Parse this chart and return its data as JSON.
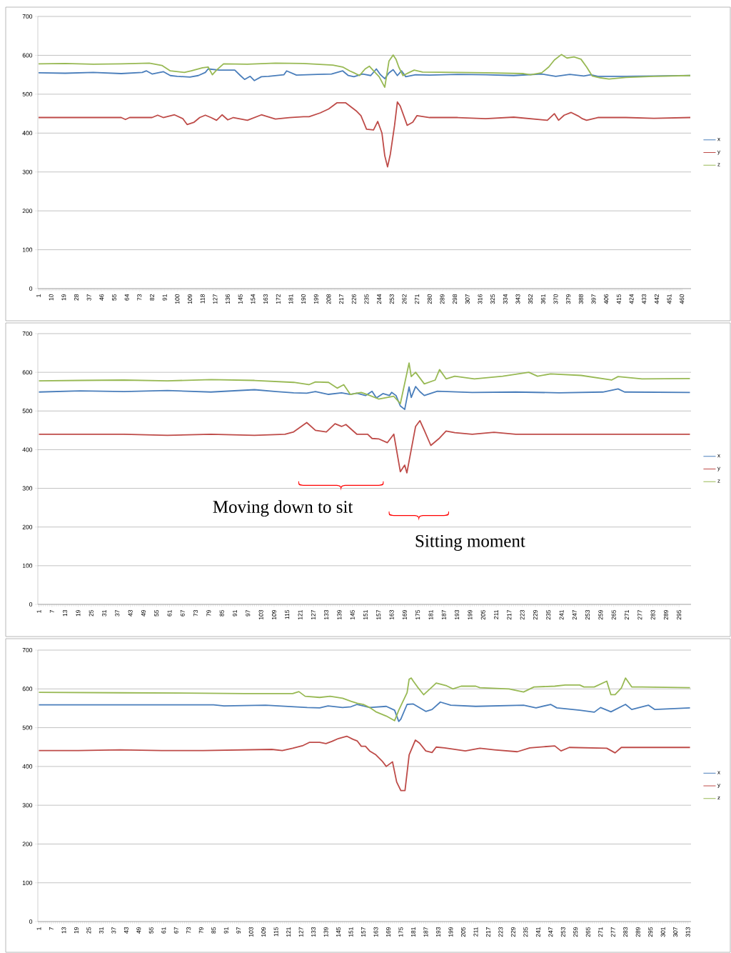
{
  "chart_data": [
    {
      "type": "line",
      "xlim": [
        0.5,
        466.5
      ],
      "ylim": [
        0,
        700
      ],
      "yticks": [
        0,
        100,
        200,
        300,
        400,
        500,
        600,
        700
      ],
      "xticks": [
        1,
        10,
        19,
        28,
        37,
        46,
        55,
        64,
        73,
        82,
        91,
        100,
        109,
        118,
        127,
        136,
        145,
        154,
        163,
        172,
        181,
        190,
        199,
        208,
        217,
        226,
        235,
        244,
        253,
        262,
        271,
        280,
        289,
        298,
        307,
        316,
        325,
        334,
        343,
        352,
        361,
        370,
        379,
        388,
        397,
        406,
        415,
        424,
        433,
        442,
        451,
        460
      ],
      "grid": "y",
      "legend": "right",
      "series": [
        {
          "name": "x",
          "color": "#4a7ebb",
          "x": [
            1,
            20,
            40,
            60,
            75,
            78,
            82,
            90,
            95,
            100,
            109,
            115,
            120,
            122,
            130,
            141,
            145,
            148,
            152,
            155,
            160,
            165,
            176,
            178,
            185,
            200,
            210,
            218,
            222,
            226,
            232,
            238,
            242,
            245,
            248,
            251,
            254,
            257,
            260,
            263,
            270,
            280,
            300,
            320,
            340,
            360,
            370,
            380,
            390,
            395,
            400,
            420,
            440,
            466
          ],
          "values": [
            555,
            554,
            556,
            553,
            556,
            560,
            552,
            558,
            548,
            546,
            544,
            548,
            556,
            565,
            562,
            562,
            548,
            538,
            546,
            535,
            545,
            546,
            550,
            560,
            549,
            551,
            552,
            560,
            548,
            545,
            552,
            548,
            565,
            550,
            540,
            555,
            563,
            548,
            560,
            545,
            550,
            549,
            551,
            550,
            548,
            552,
            546,
            551,
            547,
            550,
            546,
            546,
            547,
            548
          ]
        },
        {
          "name": "y",
          "color": "#be4b48",
          "x": [
            1,
            60,
            63,
            66,
            82,
            86,
            90,
            98,
            104,
            107,
            112,
            116,
            120,
            124,
            128,
            132,
            136,
            140,
            150,
            160,
            170,
            180,
            190,
            194,
            202,
            208,
            214,
            220,
            223,
            228,
            231,
            235,
            240,
            243,
            246,
            248,
            250,
            252,
            255,
            257,
            259,
            264,
            268,
            271,
            280,
            300,
            320,
            340,
            364,
            369,
            372,
            376,
            381,
            386,
            389,
            392,
            400,
            420,
            440,
            466
          ],
          "values": [
            440,
            440,
            435,
            440,
            440,
            446,
            440,
            447,
            437,
            422,
            428,
            440,
            446,
            440,
            433,
            447,
            434,
            440,
            433,
            447,
            436,
            440,
            442,
            442,
            452,
            462,
            478,
            478,
            470,
            456,
            445,
            410,
            408,
            430,
            400,
            342,
            313,
            346,
            420,
            480,
            470,
            420,
            428,
            445,
            440,
            440,
            437,
            441,
            433,
            450,
            433,
            446,
            453,
            444,
            437,
            433,
            440,
            440,
            438,
            440
          ]
        },
        {
          "name": "z",
          "color": "#98b954",
          "x": [
            1,
            20,
            40,
            60,
            80,
            89,
            95,
            105,
            110,
            118,
            122,
            125,
            128,
            133,
            150,
            170,
            190,
            211,
            218,
            223,
            226,
            230,
            234,
            237,
            240,
            244,
            248,
            251,
            254,
            256,
            258,
            261,
            265,
            269,
            275,
            300,
            320,
            347,
            352,
            360,
            365,
            369,
            374,
            378,
            383,
            388,
            392,
            396,
            402,
            408,
            420,
            440,
            466
          ],
          "values": [
            578,
            579,
            577,
            578,
            580,
            574,
            560,
            556,
            560,
            568,
            570,
            550,
            562,
            578,
            577,
            580,
            579,
            575,
            570,
            560,
            555,
            548,
            565,
            572,
            560,
            545,
            518,
            585,
            601,
            590,
            570,
            548,
            555,
            562,
            557,
            556,
            555,
            553,
            550,
            555,
            570,
            588,
            602,
            593,
            596,
            590,
            570,
            547,
            542,
            539,
            543,
            546,
            548
          ]
        }
      ]
    },
    {
      "type": "line",
      "xlim": [
        0.5,
        300.5
      ],
      "ylim": [
        0,
        700
      ],
      "yticks": [
        0,
        100,
        200,
        300,
        400,
        500,
        600,
        700
      ],
      "xticks": [
        1,
        7,
        13,
        19,
        25,
        31,
        37,
        43,
        49,
        55,
        61,
        67,
        73,
        79,
        85,
        91,
        97,
        103,
        109,
        115,
        121,
        127,
        133,
        139,
        145,
        151,
        157,
        163,
        169,
        175,
        181,
        187,
        193,
        199,
        205,
        211,
        217,
        223,
        229,
        235,
        241,
        247,
        253,
        259,
        265,
        271,
        277,
        283,
        289,
        295
      ],
      "grid": "y",
      "legend": "right",
      "annotations": [
        "Moving down to sit",
        "Sitting moment"
      ],
      "series": [
        {
          "name": "x",
          "color": "#4a7ebb",
          "x": [
            1,
            20,
            40,
            60,
            80,
            100,
            110,
            118,
            124,
            128,
            134,
            140,
            144,
            147,
            151,
            154,
            156,
            159,
            162,
            163,
            165,
            167,
            169,
            171,
            172,
            174,
            176,
            178,
            184,
            200,
            220,
            240,
            260,
            267,
            270,
            300
          ],
          "values": [
            549,
            552,
            550,
            553,
            549,
            555,
            550,
            547,
            546,
            550,
            543,
            547,
            543,
            546,
            540,
            551,
            534,
            545,
            540,
            548,
            540,
            513,
            504,
            562,
            535,
            563,
            550,
            540,
            551,
            548,
            549,
            547,
            549,
            557,
            549,
            548
          ]
        },
        {
          "name": "y",
          "color": "#be4b48",
          "x": [
            1,
            40,
            60,
            80,
            100,
            114,
            118,
            124,
            128,
            133,
            137,
            140,
            142,
            147,
            152,
            154,
            157,
            161,
            164,
            167,
            169,
            170,
            172,
            174,
            176,
            178,
            181,
            185,
            188,
            192,
            200,
            210,
            220,
            240,
            260,
            280,
            300
          ],
          "values": [
            440,
            440,
            437,
            440,
            437,
            440,
            446,
            470,
            450,
            446,
            467,
            460,
            465,
            440,
            440,
            429,
            428,
            418,
            440,
            343,
            360,
            340,
            400,
            460,
            475,
            450,
            411,
            430,
            448,
            444,
            440,
            445,
            440,
            440,
            440,
            440,
            440
          ]
        },
        {
          "name": "z",
          "color": "#98b954",
          "x": [
            1,
            20,
            40,
            60,
            80,
            100,
            118,
            125,
            128,
            134,
            138,
            141,
            144,
            147,
            149,
            153,
            157,
            164,
            167,
            171,
            172,
            174,
            178,
            183,
            185,
            188,
            192,
            201,
            214,
            226,
            230,
            236,
            250,
            264,
            267,
            278,
            300
          ],
          "values": [
            578,
            579,
            580,
            578,
            581,
            579,
            574,
            568,
            575,
            574,
            559,
            568,
            543,
            546,
            548,
            540,
            531,
            538,
            519,
            624,
            589,
            600,
            570,
            580,
            607,
            583,
            590,
            583,
            590,
            600,
            590,
            596,
            592,
            580,
            589,
            583,
            584
          ]
        }
      ]
    },
    {
      "type": "line",
      "xlim": [
        0.5,
        314.5
      ],
      "ylim": [
        0,
        700
      ],
      "yticks": [
        0,
        100,
        200,
        300,
        400,
        500,
        600,
        700
      ],
      "xticks": [
        1,
        7,
        13,
        19,
        25,
        31,
        37,
        43,
        49,
        55,
        61,
        67,
        73,
        79,
        85,
        91,
        97,
        103,
        109,
        115,
        121,
        127,
        133,
        139,
        145,
        151,
        157,
        163,
        169,
        175,
        181,
        187,
        193,
        199,
        205,
        211,
        217,
        223,
        229,
        235,
        241,
        247,
        253,
        259,
        265,
        271,
        277,
        283,
        289,
        295,
        301,
        307,
        313
      ],
      "grid": "y",
      "legend": "right",
      "series": [
        {
          "name": "x",
          "color": "#4a7ebb",
          "x": [
            1,
            40,
            85,
            90,
            110,
            120,
            130,
            136,
            140,
            147,
            151,
            154,
            160,
            168,
            172,
            174,
            175,
            178,
            181,
            187,
            190,
            194,
            199,
            211,
            234,
            240,
            247,
            250,
            261,
            268,
            271,
            276,
            283,
            286,
            294,
            297,
            314
          ],
          "values": [
            559,
            559,
            559,
            556,
            558,
            555,
            552,
            551,
            556,
            552,
            554,
            560,
            552,
            555,
            545,
            516,
            522,
            560,
            561,
            542,
            547,
            566,
            558,
            555,
            558,
            551,
            560,
            551,
            545,
            540,
            552,
            541,
            560,
            547,
            558,
            547,
            551
          ]
        },
        {
          "name": "y",
          "color": "#be4b48",
          "x": [
            1,
            20,
            40,
            60,
            80,
            113,
            118,
            123,
            128,
            131,
            136,
            139,
            142,
            145,
            149,
            152,
            154,
            156,
            158,
            160,
            163,
            166,
            168,
            171,
            173,
            175,
            177,
            179,
            182,
            184,
            187,
            190,
            192,
            196,
            206,
            213,
            220,
            231,
            237,
            249,
            252,
            256,
            274,
            278,
            281,
            314
          ],
          "values": [
            441,
            441,
            443,
            441,
            441,
            444,
            441,
            447,
            454,
            462,
            462,
            459,
            465,
            472,
            478,
            470,
            466,
            452,
            452,
            440,
            430,
            414,
            400,
            412,
            360,
            338,
            338,
            430,
            468,
            460,
            440,
            436,
            450,
            448,
            440,
            447,
            443,
            438,
            448,
            453,
            440,
            449,
            447,
            435,
            449,
            449
          ]
        },
        {
          "name": "z",
          "color": "#98b954",
          "x": [
            1,
            40,
            80,
            100,
            123,
            126,
            129,
            136,
            141,
            147,
            151,
            154,
            157,
            160,
            163,
            168,
            172,
            174,
            178,
            179,
            180,
            181,
            183,
            186,
            190,
            192,
            197,
            200,
            204,
            211,
            213,
            227,
            234,
            239,
            249,
            254,
            261,
            263,
            268,
            274,
            276,
            278,
            281,
            283,
            286,
            291,
            314
          ],
          "values": [
            591,
            590,
            589,
            588,
            588,
            593,
            581,
            578,
            581,
            576,
            568,
            563,
            560,
            552,
            541,
            530,
            518,
            545,
            590,
            625,
            628,
            620,
            605,
            585,
            605,
            615,
            608,
            600,
            607,
            607,
            603,
            600,
            592,
            605,
            607,
            610,
            610,
            605,
            605,
            620,
            585,
            585,
            602,
            628,
            605,
            605,
            603
          ]
        }
      ]
    }
  ]
}
